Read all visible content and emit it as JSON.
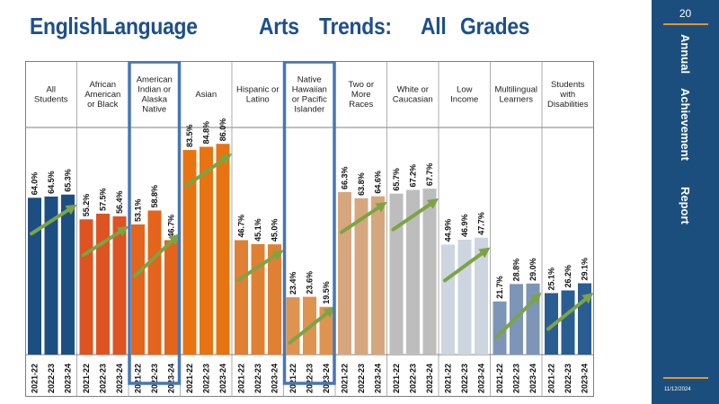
{
  "title": [
    "EnglishLanguage",
    "Arts",
    "Trends:",
    "All",
    "Grades"
  ],
  "sidebar": {
    "page_number": "20",
    "title": [
      "Annual",
      "Achievement",
      "Report"
    ],
    "date": "11/12/2024"
  },
  "colors": {
    "title": "#1d4f8c",
    "sidebar": "#1b4e7d",
    "accent": "#e79335",
    "highlight_box": "#4876b6",
    "trend_arrow": "#7ca444"
  },
  "chart_data": {
    "type": "bar",
    "ylim": [
      0,
      100
    ],
    "x_tick_labels": [
      "2021-22",
      "2022-23",
      "2023-24"
    ],
    "highlighted_groups": [
      "American Indian or Alaska Native",
      "Native Hawaiian or Pacific Islander"
    ],
    "groups": [
      {
        "name": "All Students",
        "label_lines": [
          "All",
          "Students"
        ],
        "color": "#1d4e82",
        "values": [
          64.0,
          64.5,
          65.3
        ],
        "labels": [
          "64.0%",
          "64.5%",
          "65.3%"
        ]
      },
      {
        "name": "African American or Black",
        "label_lines": [
          "African",
          "American",
          "or Black"
        ],
        "color": "#dd5322",
        "values": [
          55.2,
          57.5,
          56.4
        ],
        "labels": [
          "55.2%",
          "57.5%",
          "56.4%"
        ]
      },
      {
        "name": "American Indian or Alaska Native",
        "label_lines": [
          "American",
          "Indian or",
          "Alaska",
          "Native"
        ],
        "color": "#e4641b",
        "values": [
          53.1,
          58.8,
          46.7
        ],
        "labels": [
          "53.1%",
          "58.8%",
          "46.7%"
        ]
      },
      {
        "name": "Asian",
        "label_lines": [
          "Asian"
        ],
        "color": "#e77411",
        "values": [
          83.5,
          84.8,
          86.0
        ],
        "labels": [
          "83.5%",
          "84.8%",
          "86.0%"
        ]
      },
      {
        "name": "Hispanic or Latino",
        "label_lines": [
          "Hispanic or",
          "Latino"
        ],
        "color": "#e08033",
        "values": [
          46.7,
          45.1,
          45.0
        ],
        "labels": [
          "46.7%",
          "45.1%",
          "45.0%"
        ]
      },
      {
        "name": "Native Hawaiian or Pacific Islander",
        "label_lines": [
          "Native",
          "Hawaiian",
          "or Pacific",
          "Islander"
        ],
        "color": "#df9350",
        "values": [
          23.4,
          23.6,
          19.5
        ],
        "labels": [
          "23.4%",
          "23.6%",
          "19.5%"
        ]
      },
      {
        "name": "Two or More Races",
        "label_lines": [
          "Two or",
          "More",
          "Races"
        ],
        "color": "#d6a77f",
        "values": [
          66.3,
          63.8,
          64.6
        ],
        "labels": [
          "66.3%",
          "63.8%",
          "64.6%"
        ]
      },
      {
        "name": "White or Caucasian",
        "label_lines": [
          "White or",
          "Caucasian"
        ],
        "color": "#bdbdbd",
        "values": [
          65.7,
          67.2,
          67.7
        ],
        "labels": [
          "65.7%",
          "67.2%",
          "67.7%"
        ]
      },
      {
        "name": "Low Income",
        "label_lines": [
          "Low",
          "Income"
        ],
        "color": "#ccd5e0",
        "values": [
          44.9,
          46.9,
          47.7
        ],
        "labels": [
          "44.9%",
          "46.9%",
          "47.7%"
        ]
      },
      {
        "name": "Multilingual Learners",
        "label_lines": [
          "Multilingual",
          "Learners"
        ],
        "color": "#7d95b6",
        "values": [
          21.7,
          28.8,
          29.0
        ],
        "labels": [
          "21.7%",
          "28.8%",
          "29.0%"
        ]
      },
      {
        "name": "Students with Disabilities",
        "label_lines": [
          "Students",
          "with",
          "Disabilities"
        ],
        "color": "#2a5d91",
        "values": [
          25.1,
          26.2,
          29.1
        ],
        "labels": [
          "25.1%",
          "26.2%",
          "29.1%"
        ]
      }
    ]
  }
}
